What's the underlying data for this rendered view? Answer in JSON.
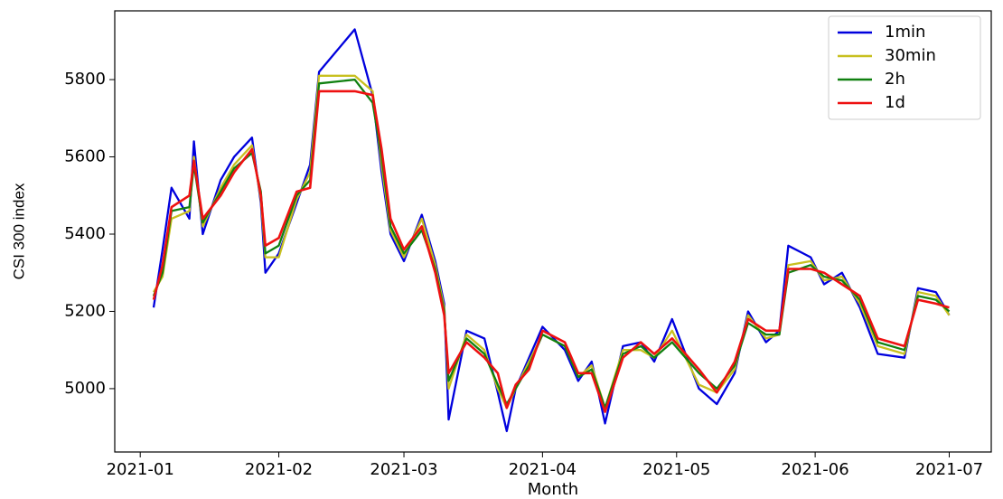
{
  "chart_data": {
    "type": "line",
    "xlabel": "Month",
    "ylabel": "CSI 300 index",
    "x": [
      3,
      5,
      7,
      11,
      12,
      14,
      18,
      21,
      25,
      27,
      28,
      31,
      35,
      38,
      40,
      48,
      52,
      54,
      56,
      59,
      63,
      66,
      68,
      69,
      73,
      77,
      80,
      82,
      84,
      87,
      90,
      95,
      98,
      101,
      104,
      108,
      112,
      115,
      119,
      125,
      129,
      133,
      136,
      140,
      143,
      145,
      150,
      153,
      157,
      161,
      165,
      171,
      174,
      178,
      181
    ],
    "series": [
      {
        "name": "1min",
        "color": "#0000dd",
        "values": [
          5210,
          5360,
          5520,
          5440,
          5640,
          5400,
          5540,
          5600,
          5650,
          5480,
          5300,
          5350,
          5480,
          5580,
          5820,
          5930,
          5760,
          5560,
          5400,
          5330,
          5450,
          5330,
          5220,
          4920,
          5150,
          5130,
          4990,
          4890,
          5000,
          5080,
          5160,
          5100,
          5020,
          5070,
          4910,
          5110,
          5120,
          5070,
          5180,
          5000,
          4960,
          5040,
          5200,
          5120,
          5150,
          5370,
          5340,
          5270,
          5300,
          5210,
          5090,
          5080,
          5260,
          5250,
          5190
        ]
      },
      {
        "name": "30min",
        "color": "#c8c020",
        "values": [
          5250,
          5290,
          5440,
          5460,
          5600,
          5420,
          5520,
          5580,
          5630,
          5490,
          5340,
          5340,
          5490,
          5560,
          5810,
          5810,
          5770,
          5580,
          5410,
          5340,
          5440,
          5320,
          5210,
          5000,
          5140,
          5100,
          5000,
          4950,
          5000,
          5070,
          5140,
          5110,
          5030,
          5060,
          4950,
          5100,
          5100,
          5080,
          5150,
          5010,
          4990,
          5050,
          5190,
          5130,
          5140,
          5320,
          5330,
          5280,
          5290,
          5220,
          5110,
          5090,
          5250,
          5240,
          5190
        ]
      },
      {
        "name": "2h",
        "color": "#108010",
        "values": [
          5240,
          5300,
          5460,
          5470,
          5580,
          5430,
          5510,
          5570,
          5610,
          5510,
          5350,
          5370,
          5500,
          5540,
          5790,
          5800,
          5740,
          5600,
          5420,
          5350,
          5410,
          5310,
          5200,
          5020,
          5130,
          5090,
          5010,
          4960,
          5000,
          5060,
          5140,
          5110,
          5030,
          5050,
          4950,
          5090,
          5110,
          5080,
          5120,
          5040,
          5000,
          5060,
          5170,
          5140,
          5140,
          5300,
          5320,
          5290,
          5280,
          5230,
          5120,
          5100,
          5240,
          5230,
          5200
        ]
      },
      {
        "name": "1d",
        "color": "#ee1111",
        "values": [
          5230,
          5320,
          5470,
          5500,
          5590,
          5440,
          5500,
          5560,
          5620,
          5500,
          5370,
          5390,
          5510,
          5520,
          5770,
          5770,
          5760,
          5620,
          5440,
          5360,
          5420,
          5300,
          5190,
          5040,
          5120,
          5080,
          5040,
          4950,
          5010,
          5050,
          5150,
          5120,
          5040,
          5040,
          4940,
          5080,
          5120,
          5090,
          5130,
          5050,
          4990,
          5070,
          5180,
          5150,
          5150,
          5310,
          5310,
          5300,
          5270,
          5240,
          5130,
          5110,
          5230,
          5220,
          5210
        ]
      }
    ],
    "xlim": [
      -5.7,
      190.4
    ],
    "xticks": [
      {
        "value": 0,
        "label": "2021-01"
      },
      {
        "value": 31,
        "label": "2021-02"
      },
      {
        "value": 59,
        "label": "2021-03"
      },
      {
        "value": 90,
        "label": "2021-04"
      },
      {
        "value": 120,
        "label": "2021-05"
      },
      {
        "value": 151,
        "label": "2021-06"
      },
      {
        "value": 181,
        "label": "2021-07"
      }
    ],
    "ylim": [
      4836,
      5978
    ],
    "yticks": [
      5000,
      5200,
      5400,
      5600,
      5800
    ],
    "legend": "upper right"
  }
}
